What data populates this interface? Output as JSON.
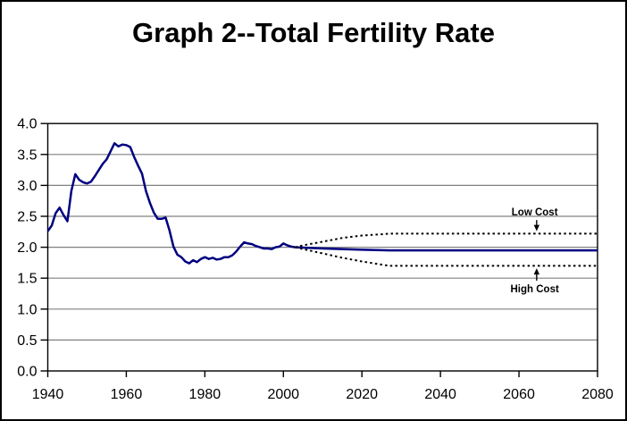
{
  "chart_data": {
    "type": "line",
    "title": "Graph 2--Total Fertility Rate",
    "xlabel": "",
    "ylabel": "",
    "xlim": [
      1940,
      2080
    ],
    "ylim": [
      0.0,
      4.0
    ],
    "grid": "horizontal",
    "legend": "none",
    "colors": {
      "historical_line": "#000080",
      "projection_dotted": "#000000",
      "grid": "#808080",
      "axis": "#000000",
      "background": "#ffffff"
    },
    "x_tick_values": [
      1940,
      1960,
      1980,
      2000,
      2020,
      2040,
      2060,
      2080
    ],
    "x_tick_labels": [
      "1940",
      "1960",
      "1980",
      "2000",
      "2020",
      "2040",
      "2060",
      "2080"
    ],
    "y_tick_values": [
      0.0,
      0.5,
      1.0,
      1.5,
      2.0,
      2.5,
      3.0,
      3.5,
      4.0
    ],
    "y_tick_labels": [
      "0.0",
      "0.5",
      "1.0",
      "1.5",
      "2.0",
      "2.5",
      "3.0",
      "3.5",
      "4.0"
    ],
    "series": [
      {
        "id": "total-fertility-rate",
        "style": "solid",
        "color": "#000080",
        "width": 2.5,
        "points": [
          [
            1940,
            2.26
          ],
          [
            1941,
            2.35
          ],
          [
            1942,
            2.55
          ],
          [
            1943,
            2.64
          ],
          [
            1944,
            2.52
          ],
          [
            1945,
            2.42
          ],
          [
            1946,
            2.91
          ],
          [
            1947,
            3.18
          ],
          [
            1948,
            3.09
          ],
          [
            1949,
            3.05
          ],
          [
            1950,
            3.03
          ],
          [
            1951,
            3.06
          ],
          [
            1952,
            3.15
          ],
          [
            1953,
            3.25
          ],
          [
            1954,
            3.35
          ],
          [
            1955,
            3.42
          ],
          [
            1956,
            3.55
          ],
          [
            1957,
            3.68
          ],
          [
            1958,
            3.63
          ],
          [
            1959,
            3.66
          ],
          [
            1960,
            3.65
          ],
          [
            1961,
            3.62
          ],
          [
            1962,
            3.46
          ],
          [
            1963,
            3.32
          ],
          [
            1964,
            3.19
          ],
          [
            1965,
            2.91
          ],
          [
            1966,
            2.72
          ],
          [
            1967,
            2.56
          ],
          [
            1968,
            2.46
          ],
          [
            1969,
            2.46
          ],
          [
            1970,
            2.48
          ],
          [
            1971,
            2.27
          ],
          [
            1972,
            2.01
          ],
          [
            1973,
            1.88
          ],
          [
            1974,
            1.84
          ],
          [
            1975,
            1.77
          ],
          [
            1976,
            1.74
          ],
          [
            1977,
            1.79
          ],
          [
            1978,
            1.76
          ],
          [
            1979,
            1.81
          ],
          [
            1980,
            1.84
          ],
          [
            1981,
            1.81
          ],
          [
            1982,
            1.83
          ],
          [
            1983,
            1.8
          ],
          [
            1984,
            1.81
          ],
          [
            1985,
            1.84
          ],
          [
            1986,
            1.84
          ],
          [
            1987,
            1.87
          ],
          [
            1988,
            1.93
          ],
          [
            1989,
            2.01
          ],
          [
            1990,
            2.08
          ],
          [
            1991,
            2.06
          ],
          [
            1992,
            2.05
          ],
          [
            1993,
            2.02
          ],
          [
            1994,
            2.0
          ],
          [
            1995,
            1.98
          ],
          [
            1996,
            1.98
          ],
          [
            1997,
            1.97
          ],
          [
            1998,
            2.0
          ],
          [
            1999,
            2.01
          ],
          [
            2000,
            2.06
          ],
          [
            2001,
            2.03
          ],
          [
            2002,
            2.01
          ],
          [
            2003,
            2.0
          ],
          [
            2010,
            1.98
          ],
          [
            2020,
            1.96
          ],
          [
            2027,
            1.95
          ],
          [
            2080,
            1.95
          ]
        ]
      },
      {
        "id": "low-cost",
        "style": "dotted",
        "color": "#000000",
        "width": 2,
        "points": [
          [
            2003,
            2.0
          ],
          [
            2005,
            2.03
          ],
          [
            2010,
            2.09
          ],
          [
            2015,
            2.15
          ],
          [
            2020,
            2.19
          ],
          [
            2025,
            2.21
          ],
          [
            2027,
            2.22
          ],
          [
            2080,
            2.22
          ]
        ]
      },
      {
        "id": "high-cost",
        "style": "dotted",
        "color": "#000000",
        "width": 2,
        "points": [
          [
            2003,
            2.0
          ],
          [
            2005,
            1.97
          ],
          [
            2010,
            1.9
          ],
          [
            2015,
            1.83
          ],
          [
            2020,
            1.77
          ],
          [
            2025,
            1.72
          ],
          [
            2027,
            1.7
          ],
          [
            2080,
            1.7
          ]
        ]
      }
    ],
    "annotations": [
      {
        "id": "low-cost",
        "text": "Low Cost",
        "year": 2064,
        "value": 2.57,
        "arrow_year": 2064.5,
        "arrow_from": 2.44,
        "arrow_to": 2.26
      },
      {
        "id": "high-cost",
        "text": "High Cost",
        "year": 2064,
        "value": 1.33,
        "arrow_year": 2064.5,
        "arrow_from": 1.46,
        "arrow_to": 1.66
      }
    ]
  }
}
